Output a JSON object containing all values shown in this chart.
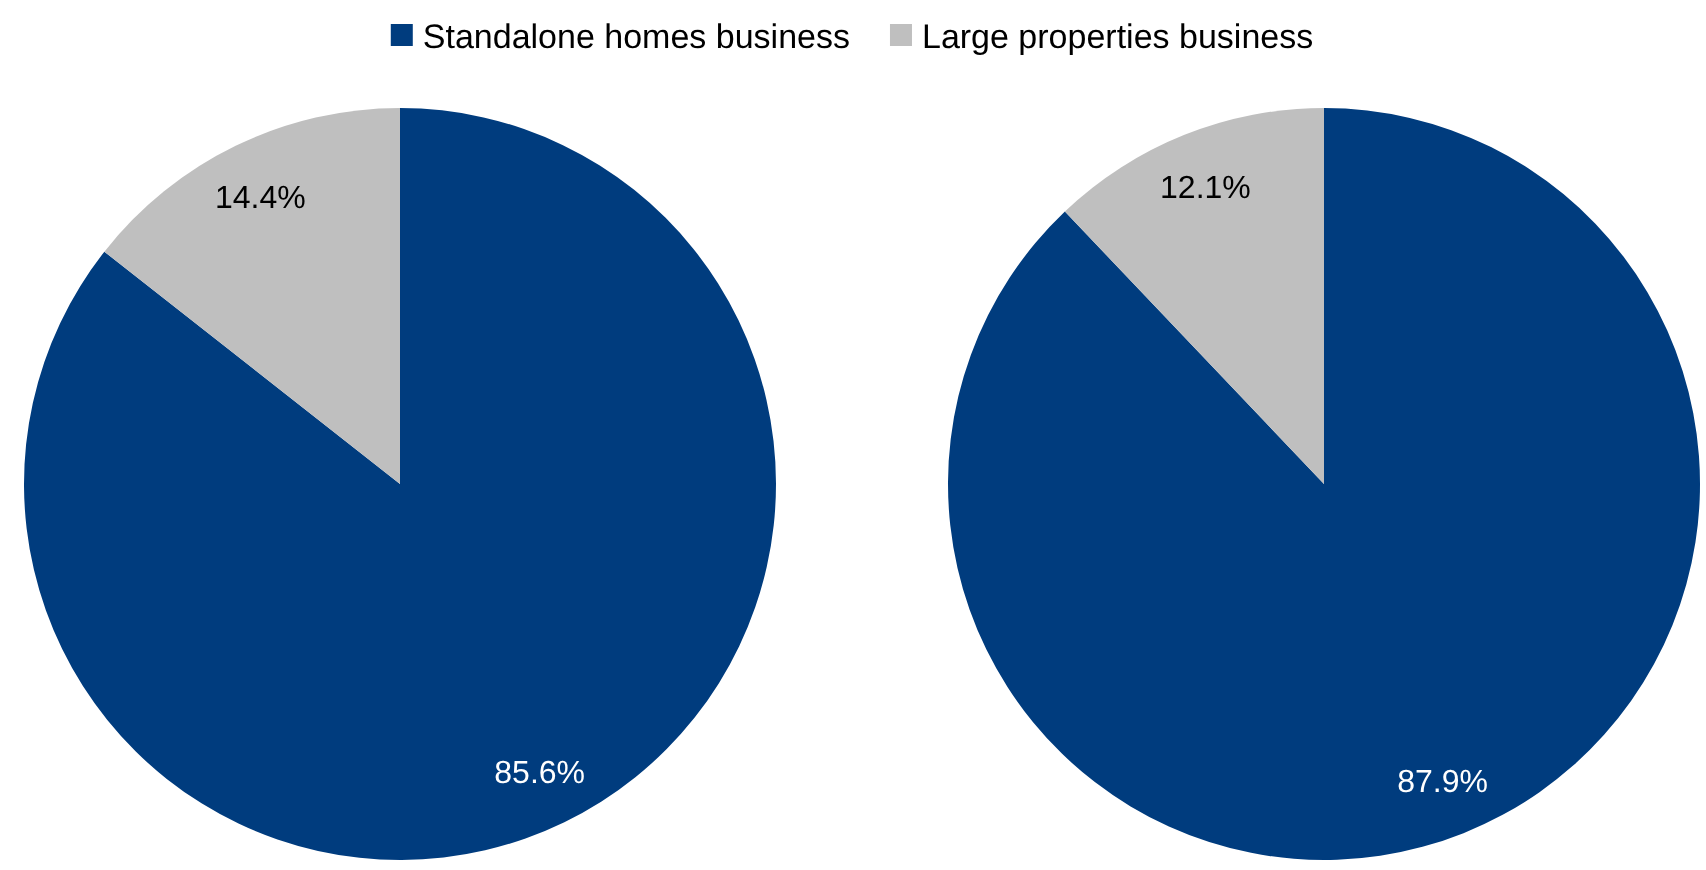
{
  "chart_data": [
    {
      "type": "pie",
      "categories": [
        "Standalone homes business",
        "Large properties business"
      ],
      "values": [
        85.6,
        14.4
      ],
      "colors": [
        "#003c7e",
        "#bfbfbf"
      ],
      "value_labels": [
        "85.6%",
        "14.4%"
      ],
      "legend": "top"
    },
    {
      "type": "pie",
      "categories": [
        null,
        null
      ],
      "values": [
        87.9,
        12.1
      ],
      "colors": [
        "#003c7e",
        "#bfbfbf"
      ],
      "value_labels": [
        "87.9%",
        "12.1%"
      ]
    }
  ]
}
